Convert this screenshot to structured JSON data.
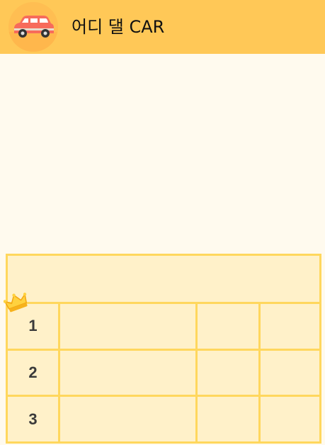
{
  "app": {
    "title": "어디 댈 CAR",
    "logo_icon": "red-car-icon"
  },
  "ranking": {
    "crown_icon": "crown-icon",
    "rows": [
      {
        "rank": "1"
      },
      {
        "rank": "2"
      },
      {
        "rank": "3"
      }
    ]
  },
  "colors": {
    "header": "#ffc857",
    "background": "#fffaee",
    "table_fill": "#fff1c9",
    "table_border": "#ffd75d",
    "car": "#f76b5b"
  }
}
